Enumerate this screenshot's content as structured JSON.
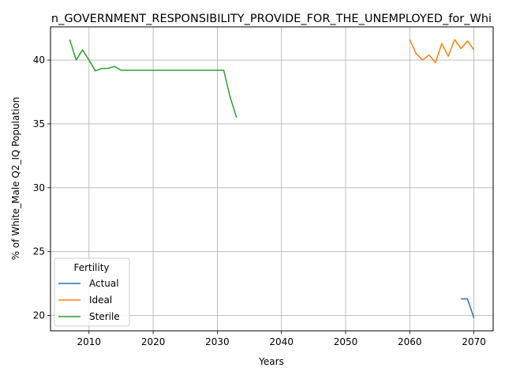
{
  "chart_data": {
    "type": "line",
    "title": "n_GOVERNMENT_RESPONSIBILITY_PROVIDE_FOR_THE_UNEMPLOYED_for_Whi",
    "xlabel": "Years",
    "ylabel": "% of White_Male Q2_IQ Population",
    "xlim": [
      2004,
      2073
    ],
    "ylim": [
      18.8,
      42.6
    ],
    "xticks": [
      2010,
      2020,
      2030,
      2040,
      2050,
      2060,
      2070
    ],
    "yticks": [
      20,
      25,
      30,
      35,
      40
    ],
    "grid": true,
    "legend": {
      "title": "Fertility",
      "placement": "lower-left",
      "entries": [
        "Actual",
        "Ideal",
        "Sterile"
      ]
    },
    "series": [
      {
        "name": "Actual",
        "color": "#1f77b4",
        "x": [
          2068,
          2069,
          2070
        ],
        "y": [
          21.3,
          21.3,
          19.8
        ]
      },
      {
        "name": "Ideal",
        "color": "#ff7f0e",
        "x": [
          2060,
          2061,
          2062,
          2063,
          2064,
          2065,
          2066,
          2067,
          2068,
          2069,
          2070
        ],
        "y": [
          41.6,
          40.5,
          40.0,
          40.4,
          39.8,
          41.3,
          40.3,
          41.6,
          40.9,
          41.5,
          40.8
        ]
      },
      {
        "name": "Sterile",
        "color": "#2ca02c",
        "x": [
          2007,
          2008,
          2009,
          2010,
          2011,
          2012,
          2013,
          2014,
          2015,
          2016,
          2017,
          2018,
          2019,
          2020,
          2021,
          2022,
          2023,
          2024,
          2025,
          2026,
          2027,
          2028,
          2029,
          2030,
          2031,
          2032,
          2033
        ],
        "y": [
          41.6,
          40.0,
          40.8,
          40.0,
          39.15,
          39.35,
          39.35,
          39.5,
          39.2,
          39.2,
          39.2,
          39.2,
          39.2,
          39.2,
          39.2,
          39.2,
          39.2,
          39.2,
          39.2,
          39.2,
          39.2,
          39.2,
          39.2,
          39.2,
          39.2,
          37.1,
          35.5
        ]
      }
    ]
  }
}
